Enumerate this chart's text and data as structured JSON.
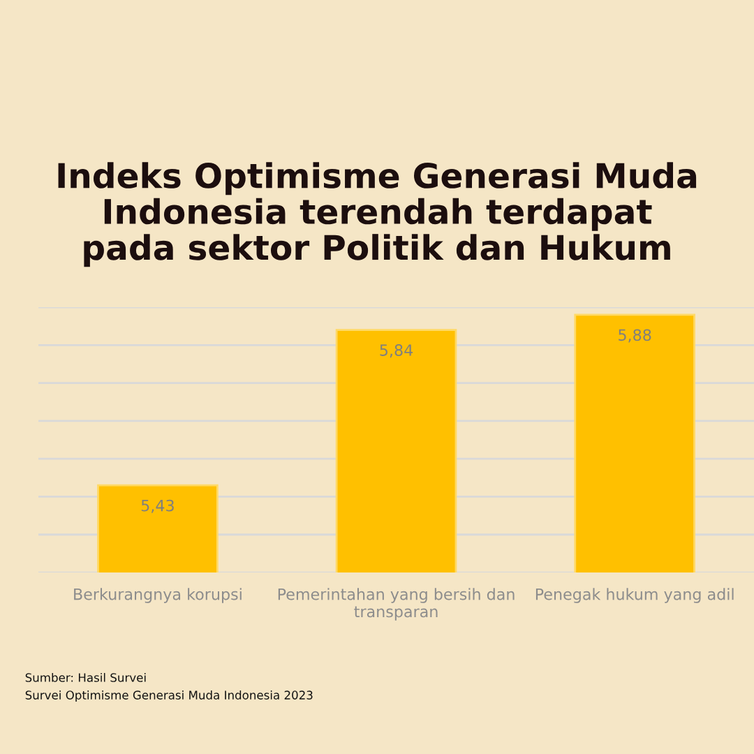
{
  "chart_data": {
    "type": "bar",
    "title": "Indeks Optimisme Generasi Muda\nIndonesia terendah terdapat\npada sektor Politik dan Hukum",
    "categories": [
      "Berkurangnya korupsi",
      "Pemerintahan yang bersih dan\ntransparan",
      "Penegak hukum yang adil"
    ],
    "values": [
      5.43,
      5.84,
      5.88
    ],
    "color": "#ffc000",
    "value_labels": [
      "5,43",
      "5,84",
      "5,88"
    ],
    "ylim": [
      5.2,
      5.9
    ],
    "yticks": [
      {
        "value": 5.2,
        "label": null
      },
      {
        "value": 5.3,
        "label": null
      },
      {
        "value": 5.4,
        "label": null
      },
      {
        "value": 5.5,
        "label": null
      },
      {
        "value": 5.6,
        "label": null
      },
      {
        "value": 5.7,
        "label": null
      },
      {
        "value": 5.8,
        "label": null
      },
      {
        "value": 5.9,
        "label": null
      }
    ],
    "grid": "y",
    "tick_labels": "x",
    "annotations": [
      "Sumber: Hasil Survei",
      "Survei Optimisme Generasi Muda Indonesia 2023"
    ]
  }
}
